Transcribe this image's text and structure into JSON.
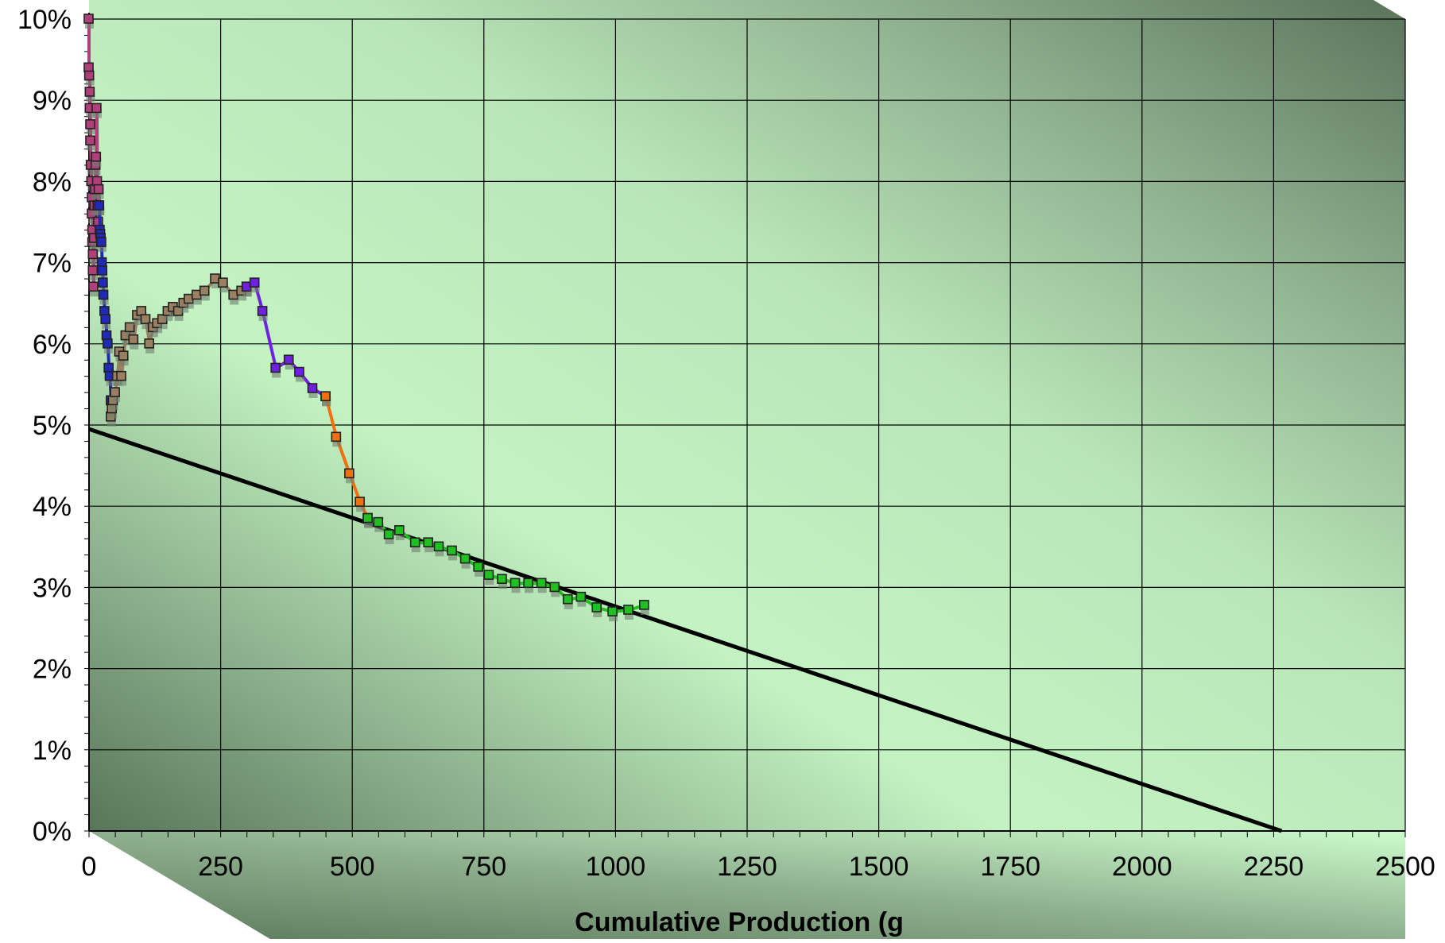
{
  "chart_data": {
    "type": "scatter",
    "title": "",
    "xlabel": "Cumulative Production (g",
    "ylabel": "",
    "xlim": [
      0,
      2500
    ],
    "ylim": [
      0,
      10
    ],
    "x_ticks": [
      "0",
      "250",
      "500",
      "750",
      "1000",
      "1250",
      "1500",
      "1750",
      "2000",
      "2250",
      "2500"
    ],
    "y_ticks": [
      "0%",
      "1%",
      "2%",
      "3%",
      "4%",
      "5%",
      "6%",
      "7%",
      "8%",
      "9%",
      "10%"
    ],
    "grid": true,
    "legend": "none",
    "colors": {
      "background_light": "#ccfccc",
      "background_dark": "#5f7a5f",
      "trend": "#000000"
    },
    "series": [
      {
        "color": "#b0407a",
        "points": [
          [
            0,
            10.0
          ],
          [
            0,
            9.4
          ],
          [
            1,
            9.3
          ],
          [
            2,
            9.1
          ],
          [
            2,
            8.9
          ],
          [
            3,
            8.7
          ],
          [
            3,
            8.5
          ],
          [
            4,
            8.2
          ],
          [
            5,
            8.0
          ],
          [
            6,
            7.8
          ],
          [
            6,
            7.6
          ],
          [
            7,
            7.4
          ],
          [
            7,
            7.25
          ],
          [
            8,
            7.1
          ],
          [
            8,
            6.9
          ],
          [
            9,
            6.7
          ],
          [
            10,
            7.3
          ],
          [
            11,
            7.7
          ],
          [
            12,
            7.9
          ],
          [
            13,
            8.2
          ],
          [
            14,
            8.3
          ],
          [
            15,
            8.9
          ],
          [
            16,
            8.0
          ],
          [
            17,
            7.7
          ],
          [
            18,
            7.5
          ],
          [
            19,
            7.9
          ],
          [
            20,
            7.7
          ]
        ]
      },
      {
        "color": "#1f2ab8",
        "points": [
          [
            20,
            7.7
          ],
          [
            21,
            7.4
          ],
          [
            22,
            7.35
          ],
          [
            23,
            7.3
          ],
          [
            24,
            7.25
          ],
          [
            25,
            7.0
          ],
          [
            26,
            6.9
          ],
          [
            27,
            6.75
          ],
          [
            28,
            6.6
          ],
          [
            30,
            6.4
          ],
          [
            32,
            6.3
          ],
          [
            34,
            6.1
          ],
          [
            36,
            6.0
          ],
          [
            38,
            5.7
          ],
          [
            40,
            5.6
          ],
          [
            42,
            5.3
          ]
        ]
      },
      {
        "color": "#9a8060",
        "points": [
          [
            42,
            5.1
          ],
          [
            44,
            5.2
          ],
          [
            46,
            5.3
          ],
          [
            50,
            5.4
          ],
          [
            54,
            5.6
          ],
          [
            58,
            5.9
          ],
          [
            62,
            5.6
          ],
          [
            66,
            5.85
          ],
          [
            70,
            6.1
          ],
          [
            78,
            6.2
          ],
          [
            85,
            6.05
          ],
          [
            92,
            6.35
          ],
          [
            100,
            6.4
          ],
          [
            108,
            6.3
          ],
          [
            115,
            6.0
          ],
          [
            122,
            6.2
          ],
          [
            130,
            6.25
          ],
          [
            140,
            6.3
          ],
          [
            150,
            6.4
          ],
          [
            160,
            6.45
          ],
          [
            170,
            6.4
          ],
          [
            180,
            6.5
          ],
          [
            190,
            6.55
          ],
          [
            205,
            6.6
          ],
          [
            220,
            6.65
          ],
          [
            240,
            6.8
          ],
          [
            255,
            6.75
          ],
          [
            275,
            6.6
          ],
          [
            290,
            6.65
          ],
          [
            300,
            6.7
          ]
        ]
      },
      {
        "color": "#7020e0",
        "points": [
          [
            300,
            6.7
          ],
          [
            315,
            6.75
          ],
          [
            330,
            6.4
          ],
          [
            355,
            5.7
          ],
          [
            380,
            5.8
          ],
          [
            400,
            5.65
          ],
          [
            425,
            5.45
          ],
          [
            450,
            5.35
          ]
        ]
      },
      {
        "color": "#f07010",
        "points": [
          [
            450,
            5.35
          ],
          [
            470,
            4.85
          ],
          [
            495,
            4.4
          ],
          [
            515,
            4.05
          ],
          [
            530,
            3.85
          ]
        ]
      },
      {
        "color": "#20c020",
        "points": [
          [
            530,
            3.85
          ],
          [
            550,
            3.8
          ],
          [
            570,
            3.65
          ],
          [
            590,
            3.7
          ],
          [
            620,
            3.55
          ],
          [
            645,
            3.55
          ],
          [
            665,
            3.5
          ],
          [
            690,
            3.45
          ],
          [
            715,
            3.35
          ],
          [
            740,
            3.25
          ],
          [
            760,
            3.15
          ],
          [
            785,
            3.1
          ],
          [
            810,
            3.05
          ],
          [
            835,
            3.05
          ],
          [
            860,
            3.05
          ],
          [
            885,
            3.0
          ],
          [
            910,
            2.85
          ],
          [
            935,
            2.88
          ],
          [
            965,
            2.75
          ],
          [
            995,
            2.7
          ],
          [
            1025,
            2.72
          ],
          [
            1055,
            2.78
          ]
        ]
      }
    ],
    "trendline": {
      "color": "#000000",
      "points": [
        [
          0,
          4.95
        ],
        [
          2265,
          0
        ]
      ]
    }
  }
}
